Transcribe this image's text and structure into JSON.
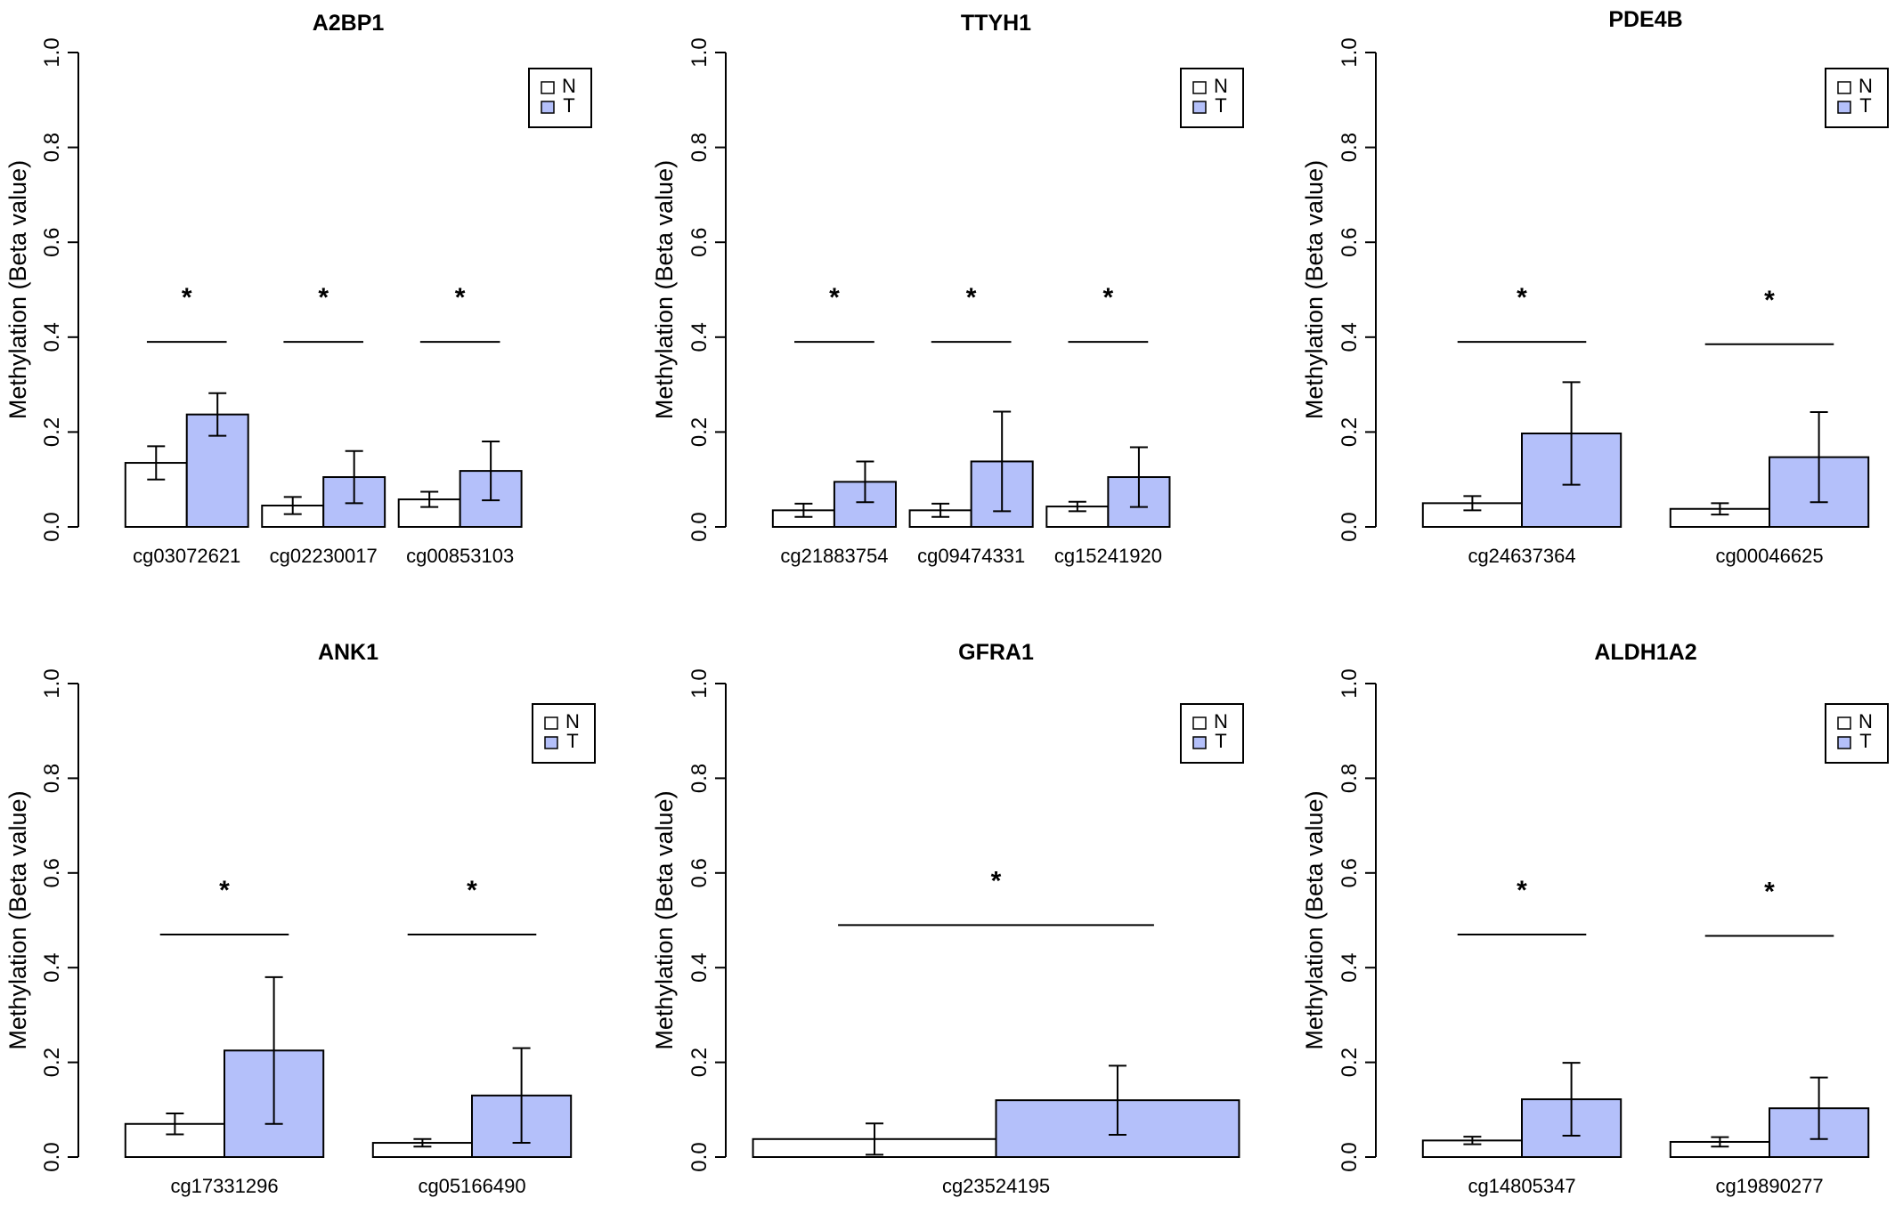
{
  "colors": {
    "N": "#ffffff",
    "T": "#b4c0fa",
    "stroke": "#000000"
  },
  "chart_data": [
    {
      "type": "bar",
      "title": "A2BP1",
      "ylabel": "Methylation (Beta value)",
      "ylim": [
        0,
        1
      ],
      "yticks": [
        "0.0",
        "0.2",
        "0.4",
        "0.6",
        "0.8",
        "1.0"
      ],
      "legend": {
        "entries": [
          "N",
          "T"
        ],
        "placement": "top-right"
      },
      "categories": [
        "cg03072621",
        "cg02230017",
        "cg00853103"
      ],
      "series": [
        {
          "name": "N",
          "values": [
            0.135,
            0.045,
            0.058
          ],
          "errors": [
            0.035,
            0.018,
            0.016
          ]
        },
        {
          "name": "T",
          "values": [
            0.237,
            0.105,
            0.118
          ],
          "errors": [
            0.045,
            0.055,
            0.062
          ]
        }
      ],
      "significance": [
        {
          "category": 0,
          "line_y": 0.39,
          "label": "*"
        },
        {
          "category": 1,
          "line_y": 0.39,
          "label": "*"
        },
        {
          "category": 2,
          "line_y": 0.39,
          "label": "*"
        }
      ]
    },
    {
      "type": "bar",
      "title": "TTYH1",
      "ylabel": "Methylation (Beta value)",
      "ylim": [
        0,
        1
      ],
      "yticks": [
        "0.0",
        "0.2",
        "0.4",
        "0.6",
        "0.8",
        "1.0"
      ],
      "legend": {
        "entries": [
          "N",
          "T"
        ],
        "placement": "top-right"
      },
      "categories": [
        "cg21883754",
        "cg09474331",
        "cg15241920"
      ],
      "series": [
        {
          "name": "N",
          "values": [
            0.035,
            0.035,
            0.043
          ],
          "errors": [
            0.014,
            0.014,
            0.01
          ]
        },
        {
          "name": "T",
          "values": [
            0.095,
            0.138,
            0.105
          ],
          "errors": [
            0.043,
            0.105,
            0.063
          ]
        }
      ],
      "significance": [
        {
          "category": 0,
          "line_y": 0.39,
          "label": "*"
        },
        {
          "category": 1,
          "line_y": 0.39,
          "label": "*"
        },
        {
          "category": 2,
          "line_y": 0.39,
          "label": "*"
        }
      ]
    },
    {
      "type": "bar",
      "title": "PDE4B",
      "ylabel": "Methylation (Beta value)",
      "ylim": [
        0,
        1
      ],
      "yticks": [
        "0.0",
        "0.2",
        "0.4",
        "0.6",
        "0.8",
        "1.0"
      ],
      "legend": {
        "entries": [
          "N",
          "T"
        ],
        "placement": "top-right"
      },
      "categories": [
        "cg24637364",
        "cg00046625"
      ],
      "series": [
        {
          "name": "N",
          "values": [
            0.05,
            0.038
          ],
          "errors": [
            0.015,
            0.012
          ]
        },
        {
          "name": "T",
          "values": [
            0.197,
            0.147
          ],
          "errors": [
            0.108,
            0.095
          ]
        }
      ],
      "significance": [
        {
          "category": 0,
          "line_y": 0.39,
          "label": "*"
        },
        {
          "category": 1,
          "line_y": 0.385,
          "label": "*"
        }
      ]
    },
    {
      "type": "bar",
      "title": "ANK1",
      "ylabel": "Methylation (Beta value)",
      "ylim": [
        0,
        1
      ],
      "yticks": [
        "0.0",
        "0.2",
        "0.4",
        "0.6",
        "0.8",
        "1.0"
      ],
      "legend": {
        "entries": [
          "N",
          "T"
        ],
        "placement": "top-right"
      },
      "categories": [
        "cg17331296",
        "cg05166490"
      ],
      "series": [
        {
          "name": "N",
          "values": [
            0.07,
            0.03
          ],
          "errors": [
            0.022,
            0.008
          ]
        },
        {
          "name": "T",
          "values": [
            0.225,
            0.13
          ],
          "errors": [
            0.155,
            0.1
          ]
        }
      ],
      "significance": [
        {
          "category": 0,
          "line_y": 0.47,
          "label": "*"
        },
        {
          "category": 1,
          "line_y": 0.47,
          "label": "*"
        }
      ]
    },
    {
      "type": "bar",
      "title": "GFRA1",
      "ylabel": "Methylation (Beta value)",
      "ylim": [
        0,
        1
      ],
      "yticks": [
        "0.0",
        "0.2",
        "0.4",
        "0.6",
        "0.8",
        "1.0"
      ],
      "legend": {
        "entries": [
          "N",
          "T"
        ],
        "placement": "top-right"
      },
      "categories": [
        "cg23524195"
      ],
      "series": [
        {
          "name": "N",
          "values": [
            0.038
          ],
          "errors": [
            0.033
          ]
        },
        {
          "name": "T",
          "values": [
            0.12
          ],
          "errors": [
            0.073
          ]
        }
      ],
      "significance": [
        {
          "category": 0,
          "line_y": 0.49,
          "label": "*"
        }
      ]
    },
    {
      "type": "bar",
      "title": "ALDH1A2",
      "ylabel": "Methylation (Beta value)",
      "ylim": [
        0,
        1
      ],
      "yticks": [
        "0.0",
        "0.2",
        "0.4",
        "0.6",
        "0.8",
        "1.0"
      ],
      "legend": {
        "entries": [
          "N",
          "T"
        ],
        "placement": "top-right"
      },
      "categories": [
        "cg14805347",
        "cg19890277"
      ],
      "series": [
        {
          "name": "N",
          "values": [
            0.035,
            0.032
          ],
          "errors": [
            0.008,
            0.01
          ]
        },
        {
          "name": "T",
          "values": [
            0.122,
            0.103
          ],
          "errors": [
            0.077,
            0.065
          ]
        }
      ],
      "significance": [
        {
          "category": 0,
          "line_y": 0.47,
          "label": "*"
        },
        {
          "category": 1,
          "line_y": 0.467,
          "label": "*"
        }
      ]
    }
  ]
}
